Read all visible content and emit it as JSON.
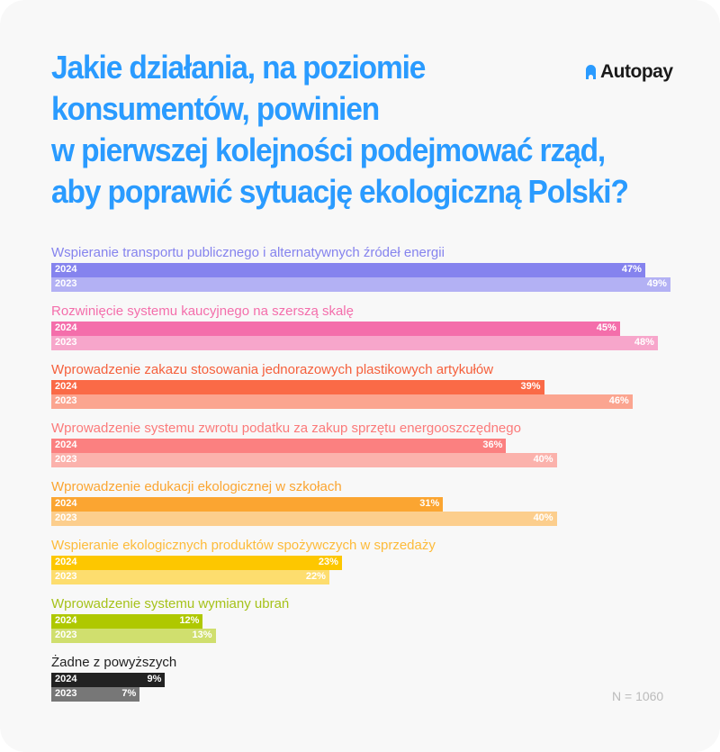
{
  "title": "Jakie działania, na poziomie konsumentów, powinien w pierwszej kolejności podejmować rząd, aby poprawić sytuację ekologiczną Polski?",
  "title_lines": [
    "Jakie działania, na poziomie",
    "konsumentów, powinien",
    "w pierwszej kolejności podejmować rząd,",
    "aby poprawić sytuację ekologiczną Polski?"
  ],
  "logo": {
    "text": "Autopay",
    "icon": "autopay-logo-icon",
    "color": "#2a9bff"
  },
  "sample_size": "N = 1060",
  "chart_data": {
    "type": "bar",
    "orientation": "horizontal",
    "series_names": [
      "2024",
      "2023"
    ],
    "unit": "%",
    "categories": [
      {
        "label": "Wspieranie transportu publicznego i alternatywnych źródeł energii",
        "v2024": 47,
        "v2023": 49,
        "color2024": "#8583ee",
        "color2023": "#b3b1f4",
        "labelColor": "#8583ee"
      },
      {
        "label": "Rozwinięcie systemu kaucyjnego na szerszą skalę",
        "v2024": 45,
        "v2023": 48,
        "color2024": "#f46eab",
        "color2023": "#f7a6cb",
        "labelColor": "#f46eab"
      },
      {
        "label": "Wprowadzenie zakazu stosowania jednorazowych plastikowych artykułów",
        "v2024": 39,
        "v2023": 46,
        "color2024": "#fa6a47",
        "color2023": "#fba590",
        "labelColor": "#f5603c"
      },
      {
        "label": "Wprowadzenie systemu zwrotu podatku za zakup sprzętu energooszczędnego",
        "v2024": 36,
        "v2023": 40,
        "color2024": "#fb8080",
        "color2023": "#fbb2ac",
        "labelColor": "#fb7a7a"
      },
      {
        "label": "Wprowadzenie edukacji ekologicznej w szkołach",
        "v2024": 31,
        "v2023": 40,
        "color2024": "#fba531",
        "color2023": "#fcce8d",
        "labelColor": "#fba531"
      },
      {
        "label": "Wspieranie ekologicznych produktów spożywczych w sprzedaży",
        "v2024": 23,
        "v2023": 22,
        "color2024": "#fdc700",
        "color2023": "#fddd6e",
        "labelColor": "#fdbb3a"
      },
      {
        "label": "Wprowadzenie systemu wymiany ubrań",
        "v2024": 12,
        "v2023": 13,
        "color2024": "#afc800",
        "color2023": "#d0df6e",
        "labelColor": "#a6c21a"
      },
      {
        "label": "Żadne z powyższych",
        "v2024": 9,
        "v2023": 7,
        "color2024": "#222222",
        "color2023": "#777777",
        "labelColor": "#222222"
      }
    ]
  }
}
